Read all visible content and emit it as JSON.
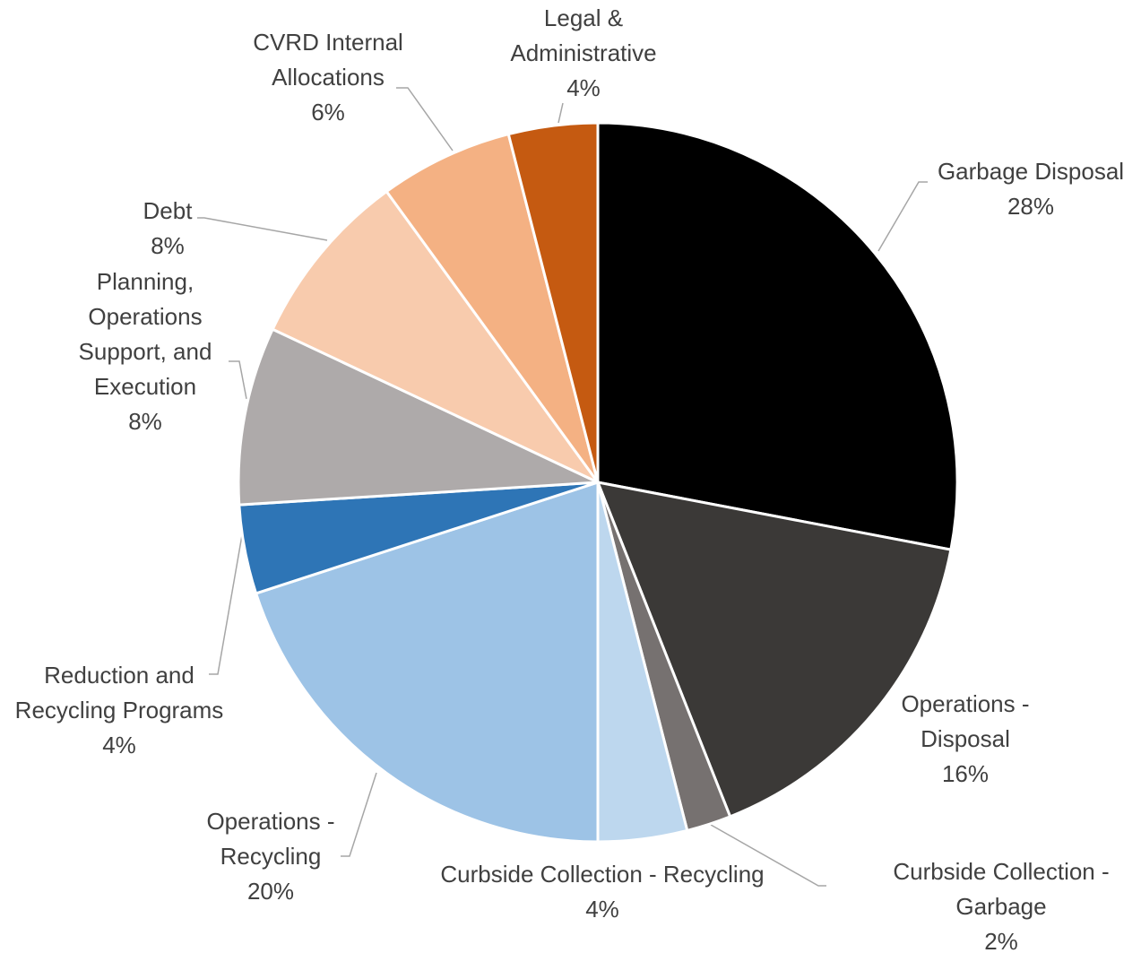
{
  "chart_data": {
    "type": "pie",
    "categories": [
      "Garbage Disposal",
      "Operations - Disposal",
      "Curbside Collection - Garbage",
      "Curbside Collection - Recycling",
      "Operations - Recycling",
      "Reduction and Recycling Programs",
      "Planning, Operations Support, and Execution",
      "Debt",
      "CVRD Internal Allocations",
      "Legal & Administrative"
    ],
    "values": [
      28,
      16,
      2,
      4,
      20,
      4,
      8,
      8,
      6,
      4
    ],
    "value_labels": [
      "28%",
      "16%",
      "2%",
      "4%",
      "20%",
      "4%",
      "8%",
      "8%",
      "6%",
      "4%"
    ],
    "colors": [
      "#000000",
      "#3b3937",
      "#767170",
      "#bdd7ee",
      "#9dc3e6",
      "#2e75b6",
      "#aeaaaa",
      "#f8cbad",
      "#f4b183",
      "#c55a11"
    ]
  }
}
